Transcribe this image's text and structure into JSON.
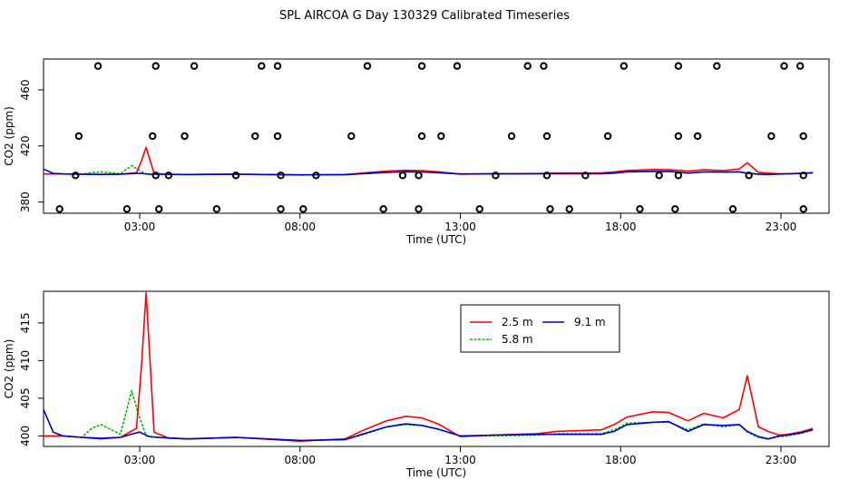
{
  "title": "SPL AIRCOA G  Day 130329  Calibrated Timeseries",
  "chart_data": [
    {
      "type": "scatter",
      "xlabel": "Time (UTC)",
      "ylabel": "CO2 (ppm)",
      "xlim": [
        0,
        24.5
      ],
      "ylim": [
        372,
        482
      ],
      "x_ticks": [
        3,
        8,
        13,
        18,
        23
      ],
      "x_tick_labels": [
        "03:00",
        "08:00",
        "13:00",
        "18:00",
        "23:00"
      ],
      "y_ticks": [
        380,
        420,
        460
      ],
      "y_tick_labels": [
        "380",
        "420",
        "460"
      ],
      "grid": false,
      "points": [
        [
          1.7,
          477
        ],
        [
          3.5,
          477
        ],
        [
          4.7,
          477
        ],
        [
          6.8,
          477
        ],
        [
          7.3,
          477
        ],
        [
          10.1,
          477
        ],
        [
          11.8,
          477
        ],
        [
          12.9,
          477
        ],
        [
          15.1,
          477
        ],
        [
          15.6,
          477
        ],
        [
          18.1,
          477
        ],
        [
          19.8,
          477
        ],
        [
          21.0,
          477
        ],
        [
          23.1,
          477
        ],
        [
          23.6,
          477
        ],
        [
          1.1,
          427
        ],
        [
          3.4,
          427
        ],
        [
          4.4,
          427
        ],
        [
          6.6,
          427
        ],
        [
          7.3,
          427
        ],
        [
          9.6,
          427
        ],
        [
          11.8,
          427
        ],
        [
          12.4,
          427
        ],
        [
          14.6,
          427
        ],
        [
          15.7,
          427
        ],
        [
          17.6,
          427
        ],
        [
          19.8,
          427
        ],
        [
          20.4,
          427
        ],
        [
          22.7,
          427
        ],
        [
          23.7,
          427
        ],
        [
          1.0,
          399
        ],
        [
          3.5,
          399
        ],
        [
          3.9,
          399
        ],
        [
          6.0,
          399
        ],
        [
          7.4,
          399
        ],
        [
          8.5,
          399
        ],
        [
          11.2,
          399
        ],
        [
          11.7,
          399
        ],
        [
          14.1,
          399
        ],
        [
          15.7,
          399
        ],
        [
          16.9,
          399
        ],
        [
          19.2,
          399
        ],
        [
          19.8,
          399
        ],
        [
          22.0,
          399
        ],
        [
          23.7,
          399
        ],
        [
          0.5,
          375
        ],
        [
          2.6,
          375
        ],
        [
          3.6,
          375
        ],
        [
          5.4,
          375
        ],
        [
          7.4,
          375
        ],
        [
          8.1,
          375
        ],
        [
          10.6,
          375
        ],
        [
          11.7,
          375
        ],
        [
          13.6,
          375
        ],
        [
          15.8,
          375
        ],
        [
          16.4,
          375
        ],
        [
          18.6,
          375
        ],
        [
          19.7,
          375
        ],
        [
          21.5,
          375
        ],
        [
          23.7,
          375
        ]
      ],
      "series": [
        {
          "name": "2.5 m",
          "color": "#ff0000",
          "x": [
            0,
            0.6,
            1.2,
            1.8,
            2.4,
            2.9,
            3.05,
            3.2,
            3.45,
            3.9,
            4.5,
            6,
            8,
            9.4,
            10,
            10.7,
            11.3,
            11.8,
            12.3,
            13,
            14,
            15.4,
            16,
            17.4,
            17.8,
            18.2,
            19,
            19.5,
            20.1,
            20.6,
            21.2,
            21.7,
            21.95,
            22.3,
            22.6,
            22.95,
            23.2,
            23.6,
            24
          ],
          "y": [
            400,
            400,
            399.8,
            399.6,
            399.8,
            401,
            409,
            419,
            400.5,
            399.7,
            399.6,
            399.8,
            399.3,
            399.6,
            400.8,
            402,
            402.6,
            402.4,
            401.6,
            399.9,
            400.1,
            400.3,
            400.6,
            400.8,
            401.5,
            402.5,
            403.2,
            403.1,
            402,
            403,
            402.4,
            403.5,
            408,
            401.2,
            400.6,
            400.1,
            400.2,
            400.5,
            401
          ]
        },
        {
          "name": "5.8 m",
          "color": "#00bb00",
          "x": [
            0,
            0.6,
            1.2,
            1.5,
            1.8,
            2.4,
            2.75,
            2.95,
            3.2,
            3.5,
            4.5,
            6,
            8,
            9.4,
            10,
            10.7,
            11.3,
            11.8,
            12.3,
            13,
            14,
            15.4,
            16,
            17.4,
            17.8,
            18.2,
            19,
            19.5,
            20.1,
            20.6,
            21.2,
            21.7,
            21.95,
            22.3,
            22.6,
            22.95,
            23.2,
            23.6,
            24
          ],
          "y": [
            400,
            400,
            399.8,
            401,
            401.5,
            400.2,
            406,
            403,
            400,
            399.8,
            399.6,
            399.8,
            399.4,
            399.5,
            400.2,
            401.2,
            401.5,
            401.4,
            400.9,
            400,
            400,
            400.1,
            400.3,
            400.3,
            400.8,
            401.7,
            401.8,
            401.8,
            400.8,
            401.6,
            401.2,
            401.5,
            400.5,
            399.8,
            399.6,
            399.9,
            400,
            400.3,
            400.8
          ]
        },
        {
          "name": "9.1 m",
          "color": "#0000cc",
          "x": [
            0,
            0.3,
            0.6,
            1.2,
            1.8,
            2.4,
            2.8,
            3.0,
            3.3,
            3.6,
            4.5,
            6,
            8,
            9.4,
            10,
            10.7,
            11.3,
            11.8,
            12.3,
            13,
            14,
            15.4,
            16,
            17.4,
            17.8,
            18.2,
            19,
            19.5,
            20.1,
            20.6,
            21.2,
            21.7,
            21.95,
            22.3,
            22.6,
            22.95,
            23.2,
            23.6,
            24
          ],
          "y": [
            403.5,
            400.5,
            400,
            399.8,
            399.7,
            399.8,
            400.3,
            400.5,
            399.9,
            399.8,
            399.6,
            399.8,
            399.4,
            399.5,
            400.3,
            401.2,
            401.6,
            401.4,
            400.9,
            400,
            400.1,
            400.2,
            400.2,
            400.2,
            400.6,
            401.5,
            401.8,
            401.9,
            400.6,
            401.5,
            401.4,
            401.5,
            400.6,
            399.9,
            399.6,
            400,
            400.1,
            400.4,
            400.8
          ]
        }
      ]
    },
    {
      "type": "line",
      "xlabel": "Time (UTC)",
      "ylabel": "CO2 (ppm)",
      "xlim": [
        0,
        24.5
      ],
      "ylim": [
        398.6,
        419.2
      ],
      "x_ticks": [
        3,
        8,
        13,
        18,
        23
      ],
      "x_tick_labels": [
        "03:00",
        "08:00",
        "13:00",
        "18:00",
        "23:00"
      ],
      "y_ticks": [
        400,
        405,
        410,
        415
      ],
      "y_tick_labels": [
        "400",
        "405",
        "410",
        "415"
      ],
      "grid": false,
      "legend": "top-center",
      "legend_items": [
        "2.5 m",
        "5.8 m",
        "9.1 m"
      ]
    }
  ]
}
